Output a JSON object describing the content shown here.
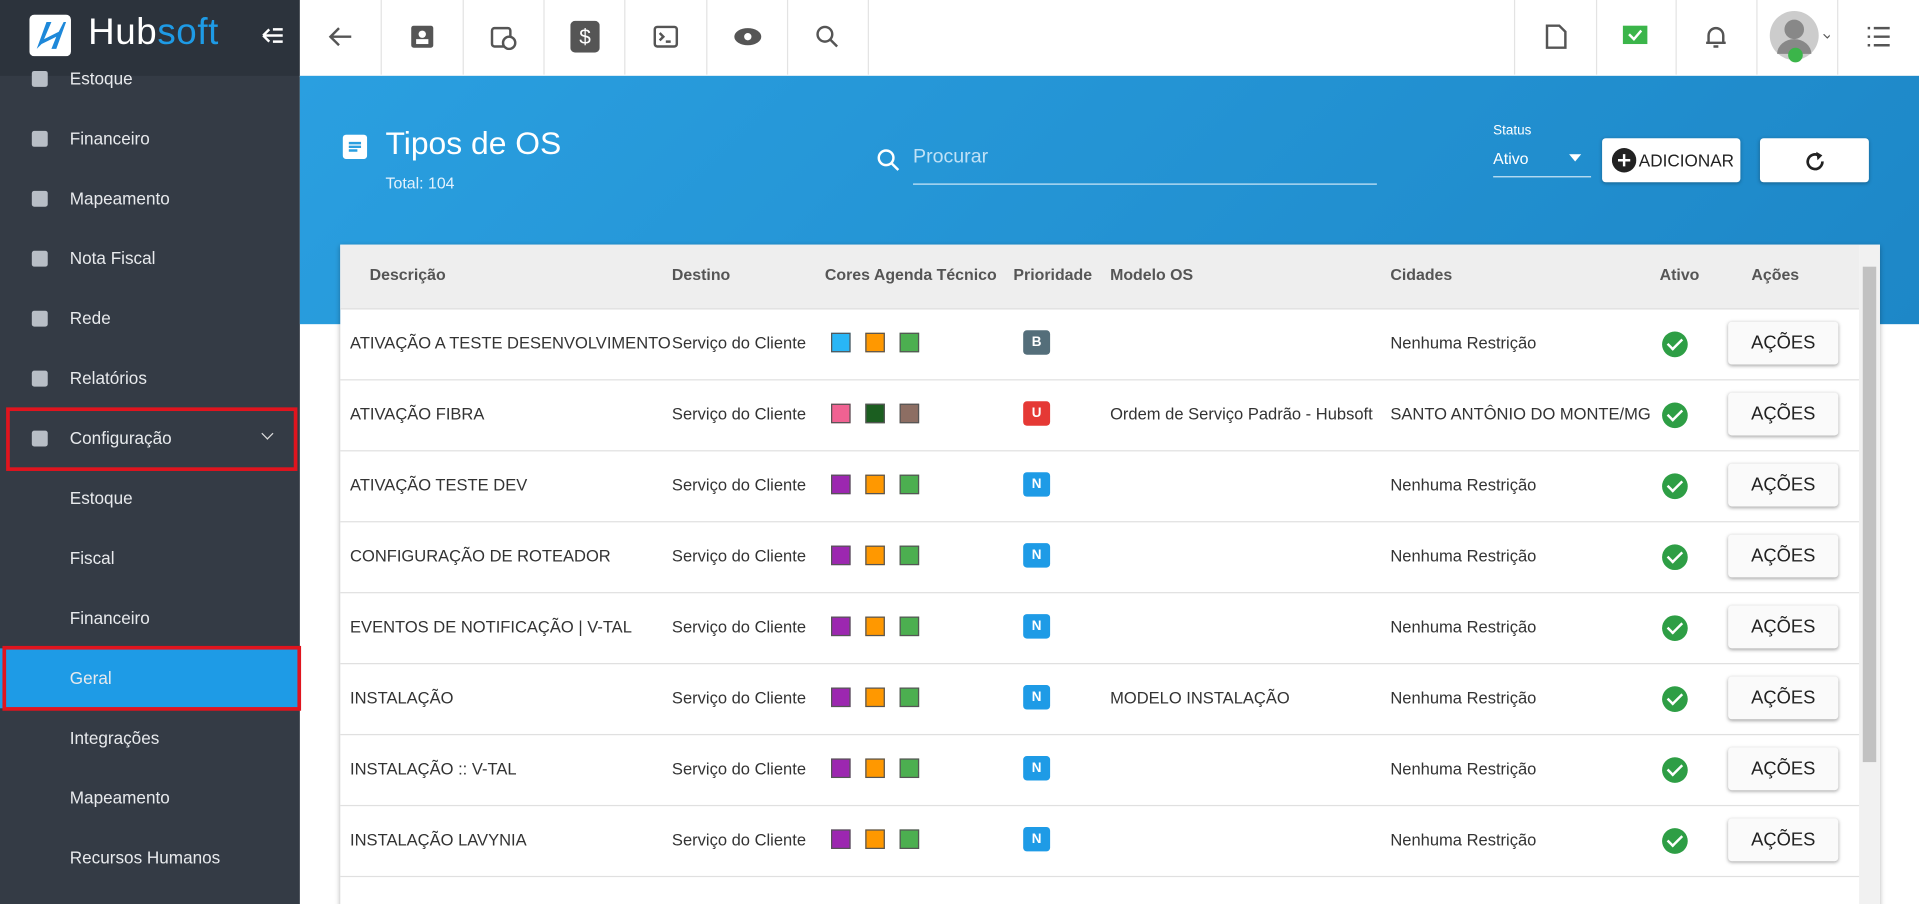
{
  "logo": [
    "Hub",
    "soft"
  ],
  "sidebar": {
    "items": [
      "Estoque",
      "Financeiro",
      "Mapeamento",
      "Nota Fiscal",
      "Rede",
      "Relatórios",
      "Configuração"
    ],
    "subitems": [
      "Estoque",
      "Fiscal",
      "Financeiro",
      "Geral",
      "Integrações",
      "Mapeamento",
      "Recursos Humanos"
    ]
  },
  "header": {
    "title": "Tipos de OS",
    "total": "Total: 104",
    "search_placeholder": "Procurar",
    "status_label": "Status",
    "status_value": "Ativo",
    "add_button": "ADICIONAR"
  },
  "table": {
    "columns": [
      "Descrição",
      "Destino",
      "Cores Agenda Técnico",
      "Prioridade",
      "Modelo OS",
      "Cidades",
      "Ativo",
      "Ações"
    ],
    "action_label": "AÇÕES",
    "rows": [
      {
        "descricao": "ATIVAÇÃO A TESTE DESENVOLVIMENTO",
        "destino": "Serviço do Cliente",
        "cores": [
          "#29b6f6",
          "#ff9800",
          "#4caf50"
        ],
        "prioridade": "B",
        "prioridade_cor": "#546e7a",
        "modelo": "",
        "cidades": "Nenhuma Restrição"
      },
      {
        "descricao": "ATIVAÇÃO FIBRA",
        "destino": "Serviço do Cliente",
        "cores": [
          "#f06292",
          "#1b5e20",
          "#8d6e63"
        ],
        "prioridade": "U",
        "prioridade_cor": "#e53935",
        "modelo": "Ordem de Serviço Padrão - Hubsoft",
        "cidades": "SANTO ANTÔNIO DO MONTE/MG"
      },
      {
        "descricao": "ATIVAÇÃO TESTE DEV",
        "destino": "Serviço do Cliente",
        "cores": [
          "#9c27b0",
          "#ff9800",
          "#4caf50"
        ],
        "prioridade": "N",
        "prioridade_cor": "#1e9be6",
        "modelo": "",
        "cidades": "Nenhuma Restrição"
      },
      {
        "descricao": "CONFIGURAÇÃO DE ROTEADOR",
        "destino": "Serviço do Cliente",
        "cores": [
          "#9c27b0",
          "#ff9800",
          "#4caf50"
        ],
        "prioridade": "N",
        "prioridade_cor": "#1e9be6",
        "modelo": "",
        "cidades": "Nenhuma Restrição"
      },
      {
        "descricao": "EVENTOS DE NOTIFICAÇÃO | V-TAL",
        "destino": "Serviço do Cliente",
        "cores": [
          "#9c27b0",
          "#ff9800",
          "#4caf50"
        ],
        "prioridade": "N",
        "prioridade_cor": "#1e9be6",
        "modelo": "",
        "cidades": "Nenhuma Restrição"
      },
      {
        "descricao": "INSTALAÇÃO",
        "destino": "Serviço do Cliente",
        "cores": [
          "#9c27b0",
          "#ff9800",
          "#4caf50"
        ],
        "prioridade": "N",
        "prioridade_cor": "#1e9be6",
        "modelo": "MODELO INSTALAÇÃO",
        "cidades": "Nenhuma Restrição"
      },
      {
        "descricao": "INSTALAÇÃO :: V-TAL",
        "destino": "Serviço do Cliente",
        "cores": [
          "#9c27b0",
          "#ff9800",
          "#4caf50"
        ],
        "prioridade": "N",
        "prioridade_cor": "#1e9be6",
        "modelo": "",
        "cidades": "Nenhuma Restrição"
      },
      {
        "descricao": "INSTALAÇÃO LAVYNIA",
        "destino": "Serviço do Cliente",
        "cores": [
          "#9c27b0",
          "#ff9800",
          "#4caf50"
        ],
        "prioridade": "N",
        "prioridade_cor": "#1e9be6",
        "modelo": "",
        "cidades": "Nenhuma Restrição"
      }
    ]
  }
}
